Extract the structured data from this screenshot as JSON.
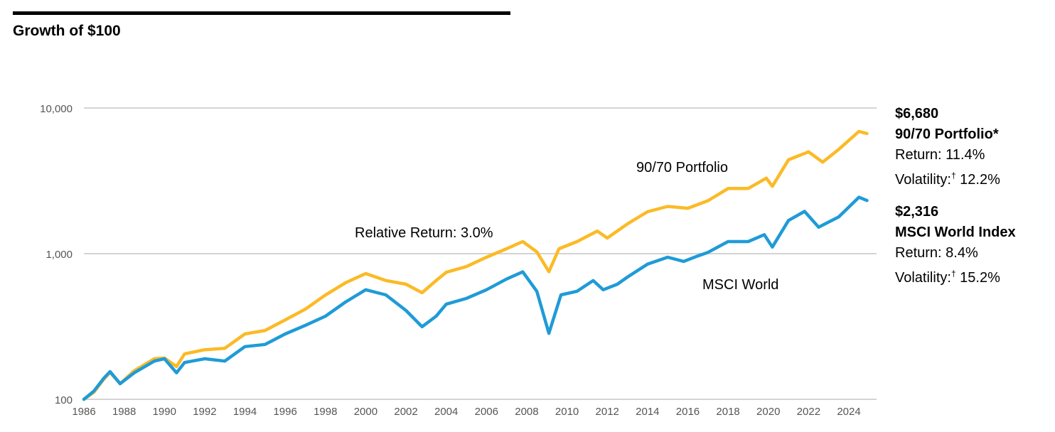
{
  "chart_data": {
    "type": "line",
    "title": "Growth of $100",
    "xlabel": "",
    "ylabel": "",
    "yscale": "log",
    "ylim": [
      100,
      10000
    ],
    "xlim": [
      1986,
      2024.9
    ],
    "grid": true,
    "y_ticks": [
      {
        "v": 100,
        "label": "100"
      },
      {
        "v": 1000,
        "label": "1,000"
      },
      {
        "v": 10000,
        "label": "10,000"
      }
    ],
    "x_ticks": [
      "1986",
      "1988",
      "1990",
      "1992",
      "1994",
      "1996",
      "1998",
      "2000",
      "2002",
      "2004",
      "2006",
      "2008",
      "2010",
      "2012",
      "2014",
      "2016",
      "2018",
      "2020",
      "2022",
      "2024"
    ],
    "series": [
      {
        "name": "90/70 Portfolio",
        "color": "#FBBA26",
        "x": [
          1986,
          1986.5,
          1987,
          1987.3,
          1987.8,
          1988.5,
          1989.5,
          1990,
          1990.6,
          1991,
          1992,
          1993,
          1994,
          1995,
          1996,
          1997,
          1998,
          1999,
          2000,
          2001,
          2002,
          2002.8,
          2003.5,
          2004,
          2005,
          2006,
          2007,
          2007.8,
          2008.5,
          2009.1,
          2009.6,
          2010.5,
          2011.5,
          2012,
          2013,
          2014,
          2015,
          2016,
          2017,
          2018,
          2019,
          2019.9,
          2020.2,
          2021,
          2022,
          2022.7,
          2023.5,
          2024.5,
          2024.9
        ],
        "values": [
          100,
          112,
          138,
          153,
          128,
          157,
          190,
          192,
          168,
          205,
          219,
          224,
          281,
          297,
          351,
          416,
          520,
          632,
          730,
          654,
          617,
          539,
          654,
          745,
          815,
          945,
          1080,
          1210,
          1030,
          752,
          1080,
          1210,
          1430,
          1280,
          1600,
          1940,
          2110,
          2050,
          2310,
          2800,
          2800,
          3300,
          2900,
          4410,
          5000,
          4250,
          5200,
          6900,
          6680
        ]
      },
      {
        "name": "MSCI World",
        "color": "#1F9BD7",
        "x": [
          1986,
          1986.5,
          1987,
          1987.3,
          1987.8,
          1988.5,
          1989.5,
          1990,
          1990.6,
          1991,
          1992,
          1993,
          1994,
          1995,
          1996,
          1997,
          1998,
          1999,
          2000,
          2001,
          2002,
          2002.8,
          2003.5,
          2004,
          2005,
          2006,
          2007,
          2007.8,
          2008.5,
          2009.1,
          2009.7,
          2010.5,
          2011.3,
          2011.8,
          2012.5,
          2013,
          2014,
          2015,
          2015.8,
          2016.5,
          2017,
          2018,
          2019,
          2019.8,
          2020.2,
          2021,
          2021.8,
          2022.5,
          2023.5,
          2024.5,
          2024.9
        ],
        "values": [
          100,
          114,
          140,
          155,
          128,
          152,
          183,
          190,
          152,
          179,
          190,
          183,
          230,
          238,
          281,
          322,
          372,
          466,
          565,
          521,
          407,
          315,
          372,
          450,
          493,
          565,
          670,
          750,
          552,
          284,
          521,
          552,
          653,
          565,
          617,
          690,
          847,
          945,
          885,
          965,
          1020,
          1210,
          1210,
          1350,
          1110,
          1690,
          1950,
          1520,
          1790,
          2440,
          2316
        ]
      }
    ],
    "annotations": {
      "portfolio_label": "90/70 Portfolio",
      "relative_return": "Relative Return: 3.0%",
      "msci_label": "MSCI World"
    }
  },
  "legend": {
    "portfolio": {
      "value": "$6,680",
      "name": "90/70 Portfolio*",
      "return": "Return: 11.4%",
      "vol_label": "Volatility:",
      "dagger": "†",
      "vol_value": " 12.2%"
    },
    "msci": {
      "value": "$2,316",
      "name": "MSCI World Index",
      "return": "Return: 8.4%",
      "vol_label": "Volatility:",
      "dagger": "†",
      "vol_value": " 15.2%"
    }
  }
}
